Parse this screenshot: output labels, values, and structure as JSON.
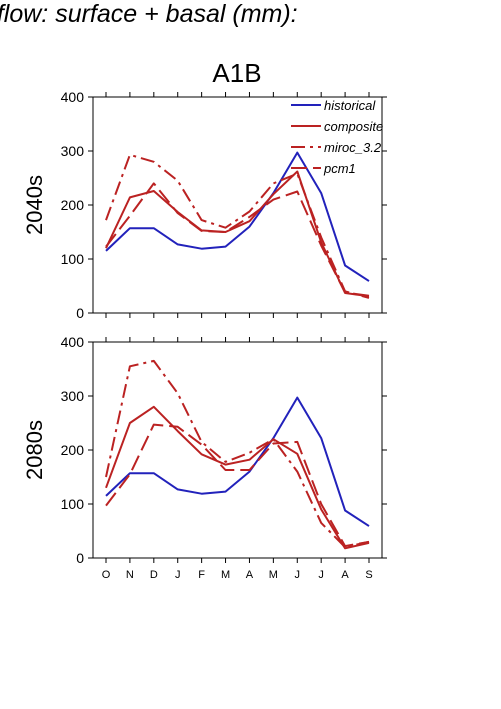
{
  "figure_title": "d flow: surface + basal (mm):",
  "scenario_title": "A1B",
  "colors": {
    "historical": "#2222bb",
    "projections": "#bb2222",
    "axes": "#000000"
  },
  "chart_data": [
    {
      "type": "line",
      "panel_label": "2040s",
      "categories": [
        "O",
        "N",
        "D",
        "J",
        "F",
        "M",
        "A",
        "M",
        "J",
        "J",
        "A",
        "S"
      ],
      "ylim": [
        0,
        400
      ],
      "yticks": [
        0,
        100,
        200,
        300,
        400
      ],
      "legend_position": "top-right",
      "series": [
        {
          "name": "historical",
          "dash": "solid",
          "color": "historical",
          "values": [
            115,
            157,
            157,
            127,
            119,
            123,
            160,
            222,
            297,
            222,
            88,
            59
          ]
        },
        {
          "name": "composite",
          "dash": "solid",
          "color": "projections",
          "values": [
            120,
            214,
            226,
            187,
            153,
            150,
            170,
            220,
            262,
            131,
            37,
            31
          ]
        },
        {
          "name": "miroc_3.2",
          "dash": "dashdot",
          "color": "projections",
          "values": [
            172,
            293,
            280,
            245,
            172,
            158,
            188,
            240,
            258,
            140,
            40,
            28
          ]
        },
        {
          "name": "pcm1",
          "dash": "dash",
          "color": "projections",
          "values": [
            123,
            180,
            240,
            185,
            152,
            150,
            178,
            210,
            225,
            125,
            38,
            32
          ]
        }
      ]
    },
    {
      "type": "line",
      "panel_label": "2080s",
      "categories": [
        "O",
        "N",
        "D",
        "J",
        "F",
        "M",
        "A",
        "M",
        "J",
        "J",
        "A",
        "S"
      ],
      "ylim": [
        0,
        400
      ],
      "yticks": [
        0,
        100,
        200,
        300,
        400
      ],
      "series": [
        {
          "name": "historical",
          "dash": "solid",
          "color": "historical",
          "values": [
            115,
            157,
            157,
            127,
            119,
            123,
            160,
            222,
            297,
            222,
            88,
            59
          ]
        },
        {
          "name": "composite",
          "dash": "solid",
          "color": "projections",
          "values": [
            130,
            250,
            280,
            235,
            192,
            173,
            182,
            220,
            193,
            90,
            18,
            28
          ]
        },
        {
          "name": "miroc_3.2",
          "dash": "dashdot",
          "color": "projections",
          "values": [
            150,
            355,
            365,
            305,
            215,
            178,
            195,
            220,
            160,
            65,
            20,
            30
          ]
        },
        {
          "name": "pcm1",
          "dash": "dash",
          "color": "projections",
          "values": [
            97,
            155,
            247,
            243,
            210,
            163,
            163,
            212,
            215,
            100,
            22,
            30
          ]
        }
      ]
    }
  ]
}
